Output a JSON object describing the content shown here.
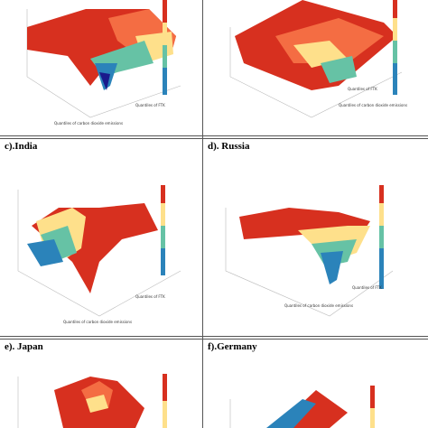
{
  "panels": {
    "c": {
      "label": "c).India"
    },
    "d": {
      "label": "d). Russia"
    },
    "e": {
      "label": "e). Japan"
    },
    "f": {
      "label": "f).Germany"
    }
  },
  "axes": {
    "x_label": "Quantiles of carbon dioxide emissions",
    "y_label": "Quantiles of FTK"
  },
  "colors": {
    "red": "#d7301f",
    "orange": "#f46d43",
    "yellow": "#fee08b",
    "cyan": "#66c2a5",
    "blue": "#2b83ba",
    "navy": "#1a1a8c",
    "border": "#555555"
  }
}
